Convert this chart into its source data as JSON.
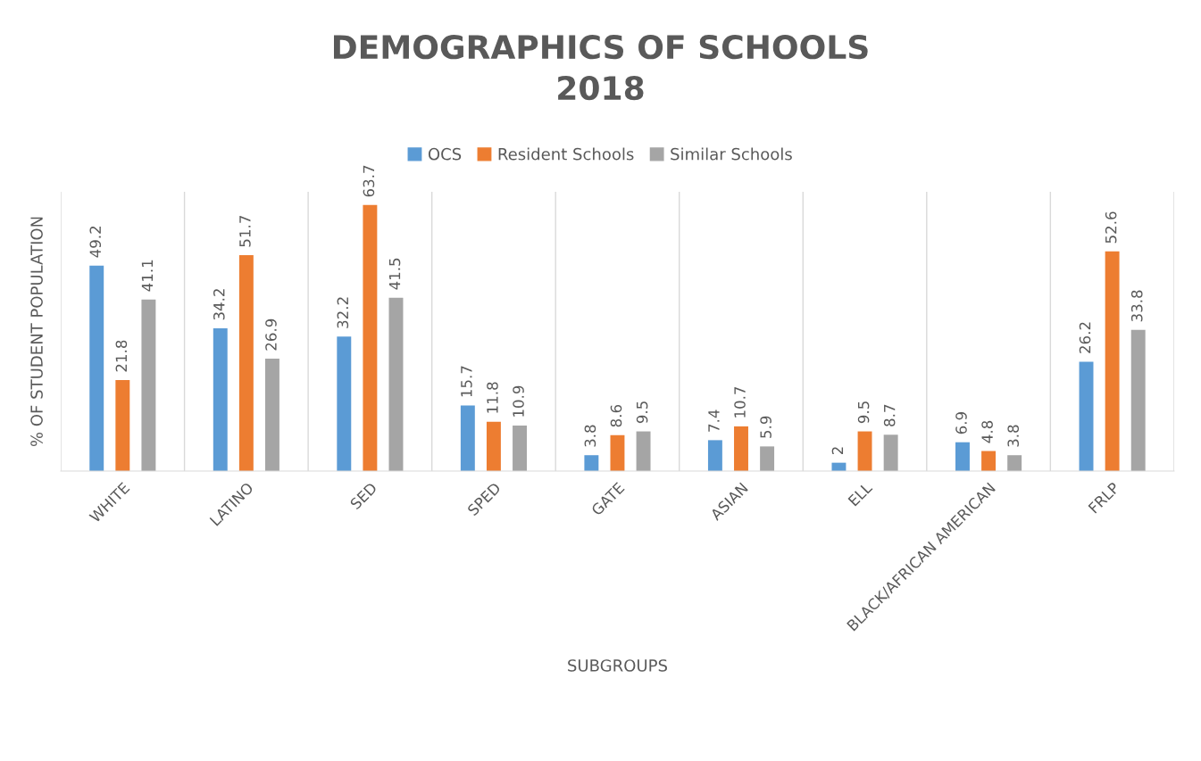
{
  "chart_data": {
    "type": "bar",
    "title": "DEMOGRAPHICS OF SCHOOLS\n2018",
    "xlabel": "SUBGROUPS",
    "ylabel": "% OF STUDENT POPULATION",
    "categories": [
      "WHITE",
      "LATINO",
      "SED",
      "SPED",
      "GATE",
      "ASIAN",
      "ELL",
      "BLACK/AFRICAN AMERICAN",
      "FRLP"
    ],
    "series": [
      {
        "name": "OCS",
        "color": "#5b9bd5",
        "values": [
          49.2,
          34.2,
          32.2,
          15.7,
          3.8,
          7.4,
          2,
          6.9,
          26.2
        ]
      },
      {
        "name": "Resident Schools",
        "color": "#ed7d31",
        "values": [
          21.8,
          51.7,
          63.7,
          11.8,
          8.6,
          10.7,
          9.5,
          4.8,
          52.6
        ]
      },
      {
        "name": "Similar Schools",
        "color": "#a5a5a5",
        "values": [
          41.1,
          26.9,
          41.5,
          10.9,
          9.5,
          5.9,
          8.7,
          3.8,
          33.8
        ]
      }
    ],
    "data_labels": true,
    "grid": "x",
    "legend": "top",
    "tick_labels": "x"
  }
}
